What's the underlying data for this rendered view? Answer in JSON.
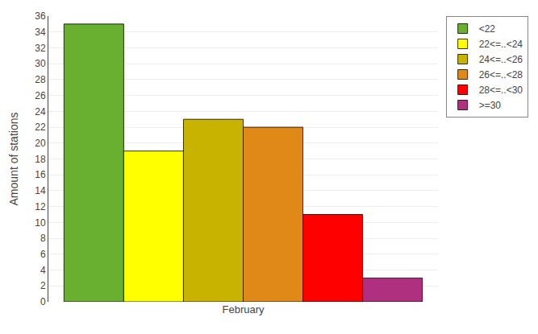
{
  "chart_data": {
    "type": "bar",
    "categories": [
      "February"
    ],
    "series": [
      {
        "name": "<22",
        "color": "#6ab030",
        "values": [
          35
        ]
      },
      {
        "name": "22<=..<24",
        "color": "#ffff00",
        "values": [
          19
        ]
      },
      {
        "name": "24<=..<26",
        "color": "#c8b400",
        "values": [
          23
        ]
      },
      {
        "name": "26<=..<28",
        "color": "#e08818",
        "values": [
          22
        ]
      },
      {
        "name": "28<=..<30",
        "color": "#ff0000",
        "values": [
          11
        ]
      },
      {
        "name": ">=30",
        "color": "#b03080",
        "values": [
          3
        ]
      }
    ],
    "ylabel": "Amount of stations",
    "ylim": [
      0,
      36
    ],
    "yticks": [
      0,
      2,
      4,
      6,
      8,
      10,
      12,
      14,
      16,
      18,
      20,
      22,
      24,
      26,
      28,
      30,
      32,
      34,
      36
    ],
    "grid": true,
    "legend": "upper right"
  }
}
